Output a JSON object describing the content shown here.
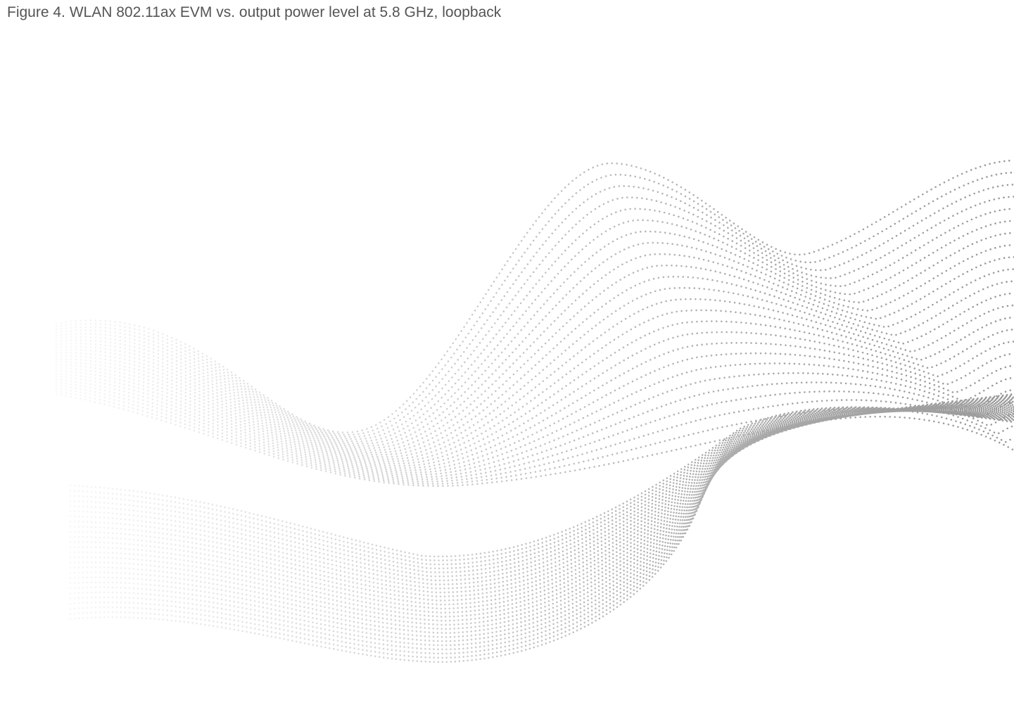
{
  "caption": "Figure 4. WLAN 802.11ax EVM vs. output power level at 5.8 GHz, loopback"
}
